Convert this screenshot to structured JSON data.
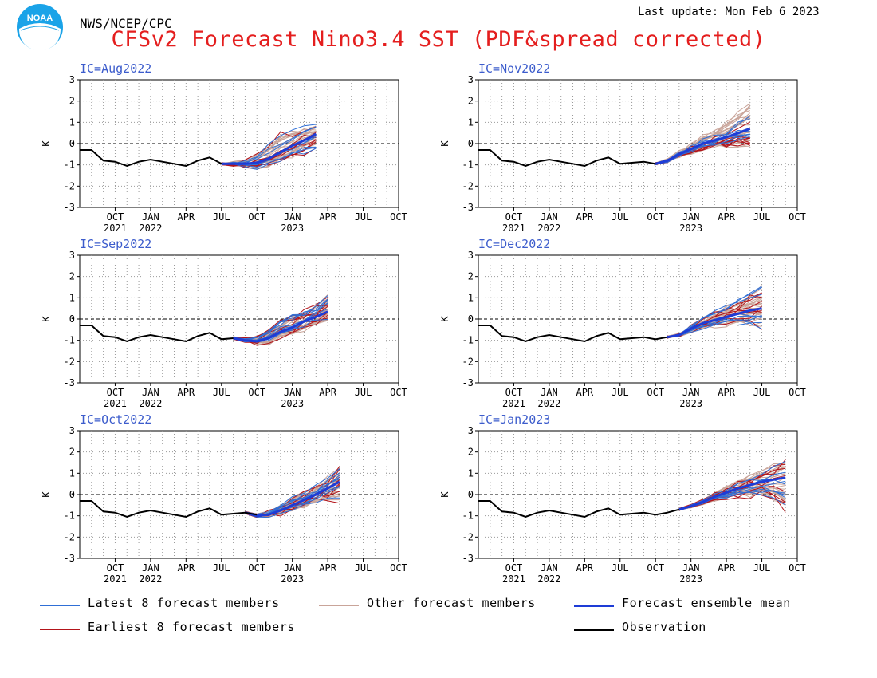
{
  "header": {
    "org": "NWS/NCEP/CPC",
    "last_update": "Last update: Mon Feb 6 2023",
    "title": "CFSv2 Forecast Nino3.4 SST (PDF&spread corrected)",
    "logo_text": "NOAA"
  },
  "colors": {
    "title": "#e41e1e",
    "ic_label": "#3c5ccc",
    "latest": "#2f6fd6",
    "other": "#c9a499",
    "mean": "#1e3cd6",
    "earliest": "#b3141a",
    "observation": "#000000"
  },
  "legend": [
    {
      "label": "Latest 8 forecast members",
      "color": "#2f6fd6",
      "weight": 1
    },
    {
      "label": "Other forecast members",
      "color": "#c9a499",
      "weight": 1
    },
    {
      "label": "Forecast ensemble mean",
      "color": "#1e3cd6",
      "weight": 3
    },
    {
      "label": "Earliest 8 forecast members",
      "color": "#b3141a",
      "weight": 1
    },
    {
      "label": "Observation",
      "color": "#000000",
      "weight": 3
    }
  ],
  "chart_data": [
    {
      "type": "line",
      "ic_label": "IC=Aug2022",
      "ylabel": "K",
      "ylim": [
        -3,
        3
      ],
      "yticks": [
        "3",
        "2",
        "1",
        "0",
        "-1",
        "-2",
        "-3"
      ],
      "xticks": [
        [
          "OCT",
          "2021"
        ],
        [
          "JAN",
          "2022"
        ],
        [
          "APR",
          ""
        ],
        [
          "JUL",
          ""
        ],
        [
          "OCT",
          ""
        ],
        [
          "JAN",
          "2023"
        ],
        [
          "APR",
          ""
        ],
        [
          "JUL",
          ""
        ],
        [
          "OCT",
          ""
        ]
      ],
      "observation": [
        -0.3,
        -0.3,
        -0.8,
        -0.85,
        -1.05,
        -0.85,
        -0.75,
        -0.85,
        -0.95,
        -1.05,
        -0.8,
        -0.65,
        -0.95
      ],
      "forecast_start": 12,
      "forecast_end": 20,
      "ensemble_mean": [
        -0.95,
        -0.95,
        -0.95,
        -0.9,
        -0.7,
        -0.4,
        -0.1,
        0.15,
        0.45
      ],
      "spread_low": [
        -1.0,
        -1.3,
        -1.5,
        -1.7,
        -1.4,
        -1.1,
        -0.8,
        -0.6,
        -0.3
      ],
      "spread_high": [
        -0.8,
        -0.5,
        -0.3,
        0.3,
        0.8,
        1.2,
        1.0,
        0.9,
        0.9
      ],
      "grid": true,
      "legend": "bottom"
    },
    {
      "type": "line",
      "ic_label": "IC=Nov2022",
      "ylabel": "K",
      "ylim": [
        -3,
        3
      ],
      "yticks": [
        "3",
        "2",
        "1",
        "0",
        "-1",
        "-2",
        "-3"
      ],
      "xticks": [
        [
          "OCT",
          "2021"
        ],
        [
          "JAN",
          "2022"
        ],
        [
          "APR",
          ""
        ],
        [
          "JUL",
          ""
        ],
        [
          "OCT",
          ""
        ],
        [
          "JAN",
          "2023"
        ],
        [
          "APR",
          ""
        ],
        [
          "JUL",
          ""
        ],
        [
          "OCT",
          ""
        ]
      ],
      "observation": [
        -0.3,
        -0.3,
        -0.8,
        -0.85,
        -1.05,
        -0.85,
        -0.75,
        -0.85,
        -0.95,
        -1.05,
        -0.8,
        -0.65,
        -0.95,
        -0.9,
        -0.85,
        -0.95
      ],
      "forecast_start": 15,
      "forecast_end": 23,
      "ensemble_mean": [
        -0.95,
        -0.8,
        -0.5,
        -0.25,
        0.0,
        0.15,
        0.3,
        0.5,
        0.7
      ],
      "spread_low": [
        -1.0,
        -1.1,
        -1.0,
        -0.8,
        -0.6,
        -0.5,
        -0.4,
        -0.3,
        -0.2
      ],
      "spread_high": [
        -0.85,
        -0.4,
        0.1,
        0.4,
        0.8,
        1.0,
        1.4,
        1.8,
        2.1
      ],
      "grid": true,
      "legend": "bottom"
    },
    {
      "type": "line",
      "ic_label": "IC=Sep2022",
      "ylabel": "K",
      "ylim": [
        -3,
        3
      ],
      "yticks": [
        "3",
        "2",
        "1",
        "0",
        "-1",
        "-2",
        "-3"
      ],
      "xticks": [
        [
          "OCT",
          "2021"
        ],
        [
          "JAN",
          "2022"
        ],
        [
          "APR",
          ""
        ],
        [
          "JUL",
          ""
        ],
        [
          "OCT",
          ""
        ],
        [
          "JAN",
          "2023"
        ],
        [
          "APR",
          ""
        ],
        [
          "JUL",
          ""
        ],
        [
          "OCT",
          ""
        ]
      ],
      "observation": [
        -0.3,
        -0.3,
        -0.8,
        -0.85,
        -1.05,
        -0.85,
        -0.75,
        -0.85,
        -0.95,
        -1.05,
        -0.8,
        -0.65,
        -0.95,
        -0.9
      ],
      "forecast_start": 13,
      "forecast_end": 21,
      "ensemble_mean": [
        -0.9,
        -1.0,
        -1.05,
        -0.9,
        -0.6,
        -0.4,
        -0.1,
        0.1,
        0.35
      ],
      "spread_low": [
        -0.95,
        -1.3,
        -1.6,
        -1.8,
        -1.4,
        -1.1,
        -0.8,
        -0.6,
        -0.4
      ],
      "spread_high": [
        -0.8,
        -0.6,
        -0.3,
        0.3,
        0.6,
        0.75,
        0.6,
        0.8,
        1.2
      ],
      "grid": true,
      "legend": "bottom"
    },
    {
      "type": "line",
      "ic_label": "IC=Dec2022",
      "ylabel": "K",
      "ylim": [
        -3,
        3
      ],
      "yticks": [
        "3",
        "2",
        "1",
        "0",
        "-1",
        "-2",
        "-3"
      ],
      "xticks": [
        [
          "OCT",
          "2021"
        ],
        [
          "JAN",
          "2022"
        ],
        [
          "APR",
          ""
        ],
        [
          "JUL",
          ""
        ],
        [
          "OCT",
          ""
        ],
        [
          "JAN",
          "2023"
        ],
        [
          "APR",
          ""
        ],
        [
          "JUL",
          ""
        ],
        [
          "OCT",
          ""
        ]
      ],
      "observation": [
        -0.3,
        -0.3,
        -0.8,
        -0.85,
        -1.05,
        -0.85,
        -0.75,
        -0.85,
        -0.95,
        -1.05,
        -0.8,
        -0.65,
        -0.95,
        -0.9,
        -0.85,
        -0.95,
        -0.85
      ],
      "forecast_start": 16,
      "forecast_end": 24,
      "ensemble_mean": [
        -0.85,
        -0.75,
        -0.45,
        -0.2,
        -0.05,
        0.1,
        0.25,
        0.4,
        0.5
      ],
      "spread_low": [
        -0.9,
        -1.1,
        -1.0,
        -0.8,
        -0.7,
        -0.6,
        -0.5,
        -0.45,
        -0.5
      ],
      "spread_high": [
        -0.8,
        -0.4,
        0.0,
        0.4,
        0.8,
        1.0,
        1.2,
        1.5,
        1.6
      ],
      "grid": true,
      "legend": "bottom"
    },
    {
      "type": "line",
      "ic_label": "IC=Oct2022",
      "ylabel": "K",
      "ylim": [
        -3,
        3
      ],
      "yticks": [
        "3",
        "2",
        "1",
        "0",
        "-1",
        "-2",
        "-3"
      ],
      "xticks": [
        [
          "OCT",
          "2021"
        ],
        [
          "JAN",
          "2022"
        ],
        [
          "APR",
          ""
        ],
        [
          "JUL",
          ""
        ],
        [
          "OCT",
          ""
        ],
        [
          "JAN",
          "2023"
        ],
        [
          "APR",
          ""
        ],
        [
          "JUL",
          ""
        ],
        [
          "OCT",
          ""
        ]
      ],
      "observation": [
        -0.3,
        -0.3,
        -0.8,
        -0.85,
        -1.05,
        -0.85,
        -0.75,
        -0.85,
        -0.95,
        -1.05,
        -0.8,
        -0.65,
        -0.95,
        -0.9,
        -0.85,
        -0.95
      ],
      "forecast_start": 14,
      "forecast_end": 22,
      "ensemble_mean": [
        -0.85,
        -1.0,
        -0.95,
        -0.75,
        -0.5,
        -0.25,
        0.0,
        0.3,
        0.6
      ],
      "spread_low": [
        -0.9,
        -1.1,
        -1.3,
        -1.3,
        -1.0,
        -0.8,
        -0.6,
        -0.5,
        -0.4
      ],
      "spread_high": [
        -0.8,
        -0.7,
        -0.4,
        0.0,
        0.3,
        0.5,
        0.7,
        0.9,
        1.4
      ],
      "grid": true,
      "legend": "bottom"
    },
    {
      "type": "line",
      "ic_label": "IC=Jan2023",
      "ylabel": "K",
      "ylim": [
        -3,
        3
      ],
      "yticks": [
        "3",
        "2",
        "1",
        "0",
        "-1",
        "-2",
        "-3"
      ],
      "xticks": [
        [
          "OCT",
          "2021"
        ],
        [
          "JAN",
          "2022"
        ],
        [
          "APR",
          ""
        ],
        [
          "JUL",
          ""
        ],
        [
          "OCT",
          ""
        ],
        [
          "JAN",
          "2023"
        ],
        [
          "APR",
          ""
        ],
        [
          "JUL",
          ""
        ],
        [
          "OCT",
          ""
        ]
      ],
      "observation": [
        -0.3,
        -0.3,
        -0.8,
        -0.85,
        -1.05,
        -0.85,
        -0.75,
        -0.85,
        -0.95,
        -1.05,
        -0.8,
        -0.65,
        -0.95,
        -0.9,
        -0.85,
        -0.95,
        -0.85,
        -0.7
      ],
      "forecast_start": 17,
      "forecast_end": 26,
      "ensemble_mean": [
        -0.7,
        -0.55,
        -0.35,
        -0.1,
        0.1,
        0.3,
        0.45,
        0.6,
        0.7,
        0.8
      ],
      "spread_low": [
        -0.75,
        -0.8,
        -0.7,
        -0.6,
        -0.5,
        -0.4,
        -0.4,
        -0.3,
        -0.5,
        -0.9
      ],
      "spread_high": [
        -0.65,
        -0.4,
        0.0,
        0.4,
        0.8,
        1.1,
        1.3,
        1.6,
        1.8,
        2.0
      ],
      "grid": true,
      "legend": "bottom"
    }
  ]
}
